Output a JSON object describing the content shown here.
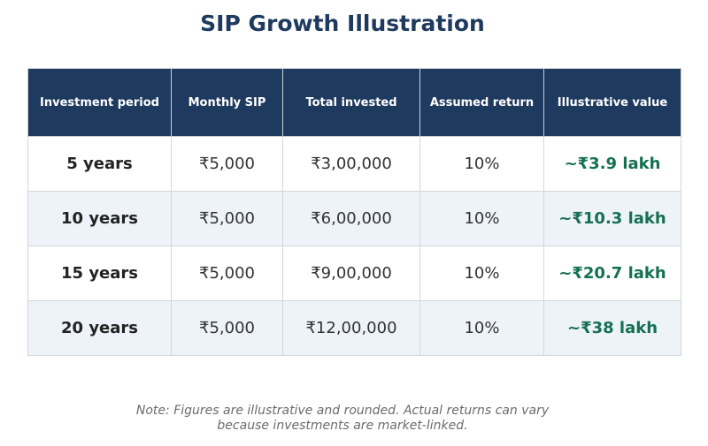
{
  "title": "SIP Growth Illustration",
  "table": {
    "headers": [
      "Investment period",
      "Monthly SIP",
      "Total invested",
      "Assumed return",
      "Illustrative value"
    ],
    "rows": [
      {
        "period": "5 years",
        "monthly": "₹5,000",
        "total": "₹3,00,000",
        "return": "10%",
        "value": "~₹3.9 lakh"
      },
      {
        "period": "10 years",
        "monthly": "₹5,000",
        "total": "₹6,00,000",
        "return": "10%",
        "value": "~₹10.3 lakh"
      },
      {
        "period": "15 years",
        "monthly": "₹5,000",
        "total": "₹9,00,000",
        "return": "10%",
        "value": "~₹20.7 lakh"
      },
      {
        "period": "20 years",
        "monthly": "₹5,000",
        "total": "₹12,00,000",
        "return": "10%",
        "value": "~₹38 lakh"
      }
    ]
  },
  "note": {
    "line1": "Note: Figures are illustrative and rounded. Actual returns can vary",
    "line2": "because investments are market-linked."
  },
  "colors": {
    "header_bg": "#1f3a5f",
    "value_text": "#157052",
    "alt_row_bg": "#eef3f9"
  }
}
